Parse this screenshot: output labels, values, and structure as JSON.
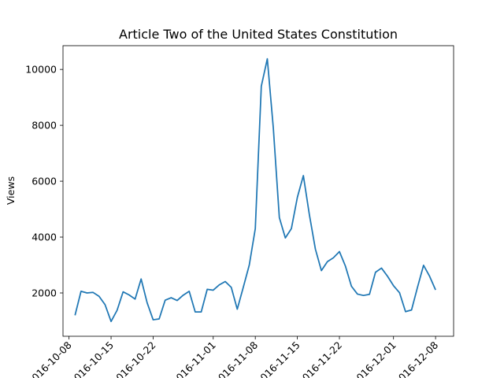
{
  "chart_data": {
    "type": "line",
    "title": "Article Two of the United States Constitution",
    "xlabel": "",
    "ylabel": "Views",
    "x_ticks": [
      "2016-10-08",
      "2016-10-15",
      "2016-10-22",
      "2016-11-01",
      "2016-11-08",
      "2016-11-15",
      "2016-11-22",
      "2016-12-01",
      "2016-12-08"
    ],
    "y_ticks": [
      2000,
      4000,
      6000,
      8000,
      10000
    ],
    "ylim": [
      450,
      10850
    ],
    "xlim": [
      "2016-10-07",
      "2016-12-11"
    ],
    "grid": false,
    "line_color": "#1f77b4",
    "series": [
      {
        "x": [
          "2016-10-09",
          "2016-10-10",
          "2016-10-11",
          "2016-10-12",
          "2016-10-13",
          "2016-10-14",
          "2016-10-15",
          "2016-10-16",
          "2016-10-17",
          "2016-10-18",
          "2016-10-19",
          "2016-10-20",
          "2016-10-21",
          "2016-10-22",
          "2016-10-23",
          "2016-10-24",
          "2016-10-25",
          "2016-10-26",
          "2016-10-27",
          "2016-10-28",
          "2016-10-29",
          "2016-10-30",
          "2016-10-31",
          "2016-11-01",
          "2016-11-02",
          "2016-11-03",
          "2016-11-04",
          "2016-11-05",
          "2016-11-06",
          "2016-11-07",
          "2016-11-08",
          "2016-11-09",
          "2016-11-10",
          "2016-11-11",
          "2016-11-12",
          "2016-11-13",
          "2016-11-14",
          "2016-11-15",
          "2016-11-16",
          "2016-11-17",
          "2016-11-18",
          "2016-11-19",
          "2016-11-20",
          "2016-11-21",
          "2016-11-22",
          "2016-11-23",
          "2016-11-24",
          "2016-11-25",
          "2016-11-26",
          "2016-11-27",
          "2016-11-28",
          "2016-11-29",
          "2016-11-30",
          "2016-12-01",
          "2016-12-02",
          "2016-12-03",
          "2016-12-04",
          "2016-12-05",
          "2016-12-06",
          "2016-12-07",
          "2016-12-08"
        ],
        "values": [
          1200,
          2060,
          2000,
          2020,
          1880,
          1580,
          980,
          1380,
          2040,
          1930,
          1780,
          2500,
          1650,
          1040,
          1070,
          1740,
          1830,
          1730,
          1920,
          2060,
          1320,
          1320,
          2130,
          2100,
          2290,
          2410,
          2200,
          1420,
          2200,
          3000,
          4300,
          9400,
          10380,
          7900,
          4700,
          3970,
          4300,
          5420,
          6200,
          4800,
          3570,
          2800,
          3120,
          3260,
          3480,
          2960,
          2240,
          1960,
          1910,
          1950,
          2740,
          2890,
          2600,
          2260,
          2010,
          1330,
          1390,
          2210,
          2990,
          2600,
          2110
        ]
      }
    ]
  }
}
